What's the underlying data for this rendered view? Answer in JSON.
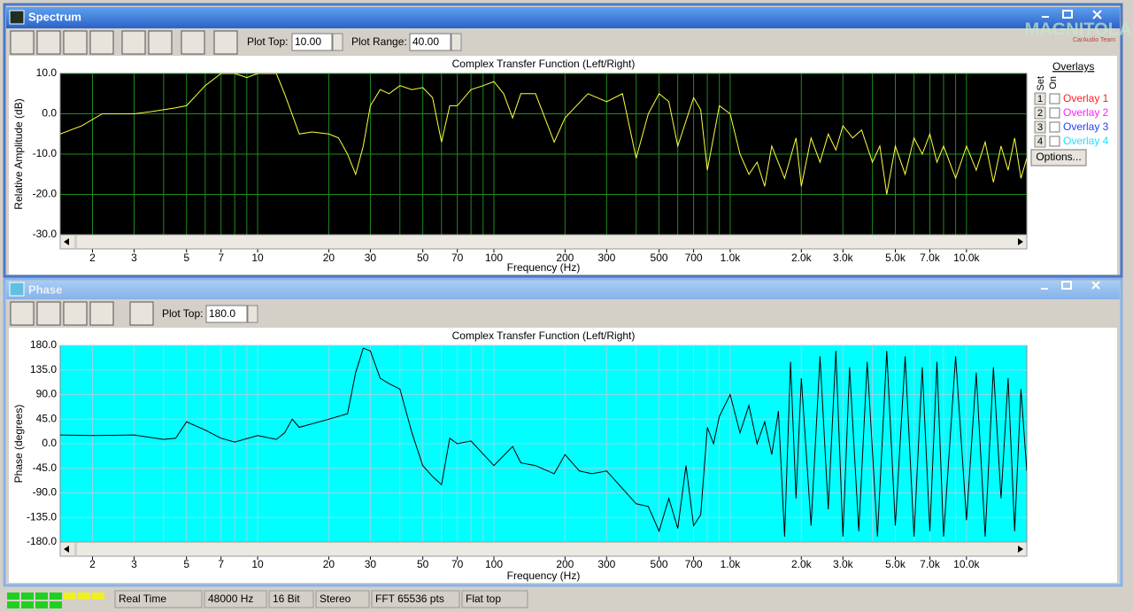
{
  "windows": [
    {
      "title": "Spectrum",
      "plot_top_label": "Plot Top:",
      "plot_top": "10.00",
      "plot_range_label": "Plot Range:",
      "plot_range": "40.00"
    },
    {
      "title": "Phase",
      "plot_top_label": "Plot Top:",
      "plot_top": "180.0"
    }
  ],
  "overlays": {
    "title": "Overlays",
    "set_label": "Set",
    "on_label": "On",
    "options": "Options...",
    "items": [
      {
        "set": "1",
        "name": "Overlay 1",
        "color": "#ff2020"
      },
      {
        "set": "2",
        "name": "Overlay 2",
        "color": "#ff20ff"
      },
      {
        "set": "3",
        "name": "Overlay 3",
        "color": "#2040ff"
      },
      {
        "set": "4",
        "name": "Overlay 4",
        "color": "#20e0ff"
      }
    ]
  },
  "logo": {
    "name": "MAGNITOLA",
    "team": "CarAudio Team"
  },
  "status_bar": [
    "Real Time",
    "48000 Hz",
    "16 Bit",
    "Stereo",
    "FFT 65536 pts",
    "Flat top"
  ],
  "chart_data": [
    {
      "type": "line",
      "title": "Complex Transfer Function (Left/Right)",
      "x_label": "Frequency (Hz)",
      "y_label": "Relative Amplitude (dB)",
      "log_x": true,
      "grid": true,
      "background": "#000000",
      "grid_color": "#1f8a1f",
      "color": "#ffff40",
      "xlim": [
        1.46,
        18000
      ],
      "ylim": [
        -30,
        10
      ],
      "xticks": [
        2,
        3,
        5,
        7,
        10,
        20,
        30,
        50,
        70,
        100,
        200,
        300,
        500,
        700,
        {
          "value": 1000,
          "label": "1.0k"
        },
        {
          "value": 2000,
          "label": "2.0k"
        },
        {
          "value": 3000,
          "label": "3.0k"
        },
        {
          "value": 5000,
          "label": "5.0k"
        },
        {
          "value": 7000,
          "label": "7.0k"
        },
        {
          "value": 10000,
          "label": "10.0k"
        }
      ],
      "xminor_ticks": [
        4,
        6,
        8,
        9,
        40,
        60,
        80,
        90,
        400,
        600,
        800,
        900,
        4000,
        6000,
        8000,
        9000
      ],
      "yticks": [
        {
          "value": 10,
          "label": "10.0"
        },
        {
          "value": 0,
          "label": "0.0"
        },
        {
          "value": -10,
          "label": "-10.0"
        },
        {
          "value": -20,
          "label": "-20.0"
        },
        {
          "value": -30,
          "label": "-30.0"
        }
      ],
      "x": [
        1.46,
        1.8,
        2.2,
        3,
        3.5,
        4.5,
        5,
        6,
        7,
        8,
        9,
        10,
        12,
        13,
        15,
        17,
        20,
        22,
        24,
        26,
        28,
        30,
        33,
        36,
        40,
        45,
        50,
        55,
        60,
        65,
        70,
        80,
        90,
        100,
        110,
        120,
        130,
        150,
        180,
        200,
        250,
        300,
        350,
        400,
        450,
        500,
        550,
        600,
        700,
        750,
        800,
        900,
        1000,
        1100,
        1200,
        1300,
        1400,
        1500,
        1700,
        1900,
        2000,
        2200,
        2400,
        2600,
        2800,
        3000,
        3300,
        3600,
        4000,
        4300,
        4600,
        5000,
        5500,
        6000,
        6500,
        7000,
        7500,
        8000,
        9000,
        10000,
        11000,
        12000,
        13000,
        14000,
        15000,
        16000,
        17000,
        18000
      ],
      "values": [
        -5,
        -3,
        0,
        0,
        0.5,
        1.5,
        2,
        7,
        10,
        10,
        9,
        10,
        10,
        5,
        -5,
        -4.5,
        -5,
        -6,
        -10,
        -15,
        -8,
        2,
        6,
        5,
        7,
        6,
        6.5,
        4,
        -7,
        2,
        2,
        6,
        7,
        8,
        5,
        -1,
        5,
        5,
        -7,
        -1,
        5,
        3,
        5,
        -11,
        0,
        5,
        3,
        -8,
        4,
        1,
        -14,
        2,
        0,
        -10,
        -15,
        -12,
        -18,
        -8,
        -16,
        -6,
        -18,
        -6,
        -12,
        -5,
        -9,
        -3,
        -6,
        -4,
        -12,
        -8,
        -20,
        -8,
        -15,
        -6,
        -10,
        -5,
        -12,
        -8,
        -16,
        -8,
        -14,
        -7,
        -17,
        -8,
        -14,
        -6,
        -16,
        -11
      ]
    },
    {
      "type": "line",
      "title": "Complex Transfer Function (Left/Right)",
      "x_label": "Frequency (Hz)",
      "y_label": "Phase (degrees)",
      "log_x": true,
      "grid": true,
      "background": "#00ffff",
      "grid_color": "#8fd8e8",
      "color": "#000000",
      "xlim": [
        1.46,
        18000
      ],
      "ylim": [
        -180,
        180
      ],
      "xticks": [
        2,
        3,
        5,
        7,
        10,
        20,
        30,
        50,
        70,
        100,
        200,
        300,
        500,
        700,
        {
          "value": 1000,
          "label": "1.0k"
        },
        {
          "value": 2000,
          "label": "2.0k"
        },
        {
          "value": 3000,
          "label": "3.0k"
        },
        {
          "value": 5000,
          "label": "5.0k"
        },
        {
          "value": 7000,
          "label": "7.0k"
        },
        {
          "value": 10000,
          "label": "10.0k"
        }
      ],
      "xminor_ticks": [
        4,
        6,
        8,
        9,
        40,
        60,
        80,
        90,
        400,
        600,
        800,
        900,
        4000,
        6000,
        8000,
        9000
      ],
      "yticks": [
        {
          "value": 180,
          "label": "180.0"
        },
        {
          "value": 135,
          "label": "135.0"
        },
        {
          "value": 90,
          "label": "90.0"
        },
        {
          "value": 45,
          "label": "45.0"
        },
        {
          "value": 0,
          "label": "0.0"
        },
        {
          "value": -45,
          "label": "-45.0"
        },
        {
          "value": -90,
          "label": "-90.0"
        },
        {
          "value": -135,
          "label": "-135.0"
        },
        {
          "value": -180,
          "label": "-180.0"
        }
      ],
      "x": [
        1.46,
        2,
        3,
        4,
        4.5,
        5,
        6,
        7,
        8,
        10,
        12,
        13,
        14,
        15,
        20,
        24,
        26,
        28,
        30,
        33,
        36,
        40,
        45,
        50,
        55,
        60,
        65,
        70,
        80,
        100,
        120,
        130,
        150,
        180,
        200,
        230,
        260,
        300,
        400,
        450,
        500,
        550,
        600,
        650,
        700,
        750,
        800,
        850,
        900,
        1000,
        1100,
        1200,
        1300,
        1400,
        1500,
        1600,
        1700,
        1800,
        1900,
        2000,
        2200,
        2400,
        2600,
        2800,
        3000,
        3200,
        3500,
        3800,
        4200,
        4600,
        5000,
        5500,
        6000,
        6500,
        7000,
        7500,
        8000,
        9000,
        10000,
        11000,
        12000,
        13000,
        14000,
        15000,
        16000,
        17000,
        18000
      ],
      "values": [
        16,
        15,
        16,
        8,
        10,
        40,
        25,
        10,
        3,
        15,
        8,
        20,
        45,
        30,
        45,
        55,
        130,
        175,
        170,
        120,
        110,
        100,
        20,
        -40,
        -60,
        -75,
        10,
        0,
        5,
        -40,
        -5,
        -35,
        -40,
        -55,
        -20,
        -50,
        -55,
        -50,
        -110,
        -115,
        -160,
        -100,
        -155,
        -40,
        -150,
        -130,
        30,
        0,
        50,
        90,
        20,
        70,
        0,
        40,
        -20,
        60,
        -170,
        150,
        -100,
        120,
        -150,
        160,
        -120,
        170,
        -170,
        140,
        -160,
        150,
        -170,
        170,
        -150,
        160,
        -170,
        140,
        -160,
        150,
        -170,
        160,
        -140,
        130,
        -170,
        140,
        -100,
        120,
        -160,
        100,
        -50
      ]
    }
  ]
}
